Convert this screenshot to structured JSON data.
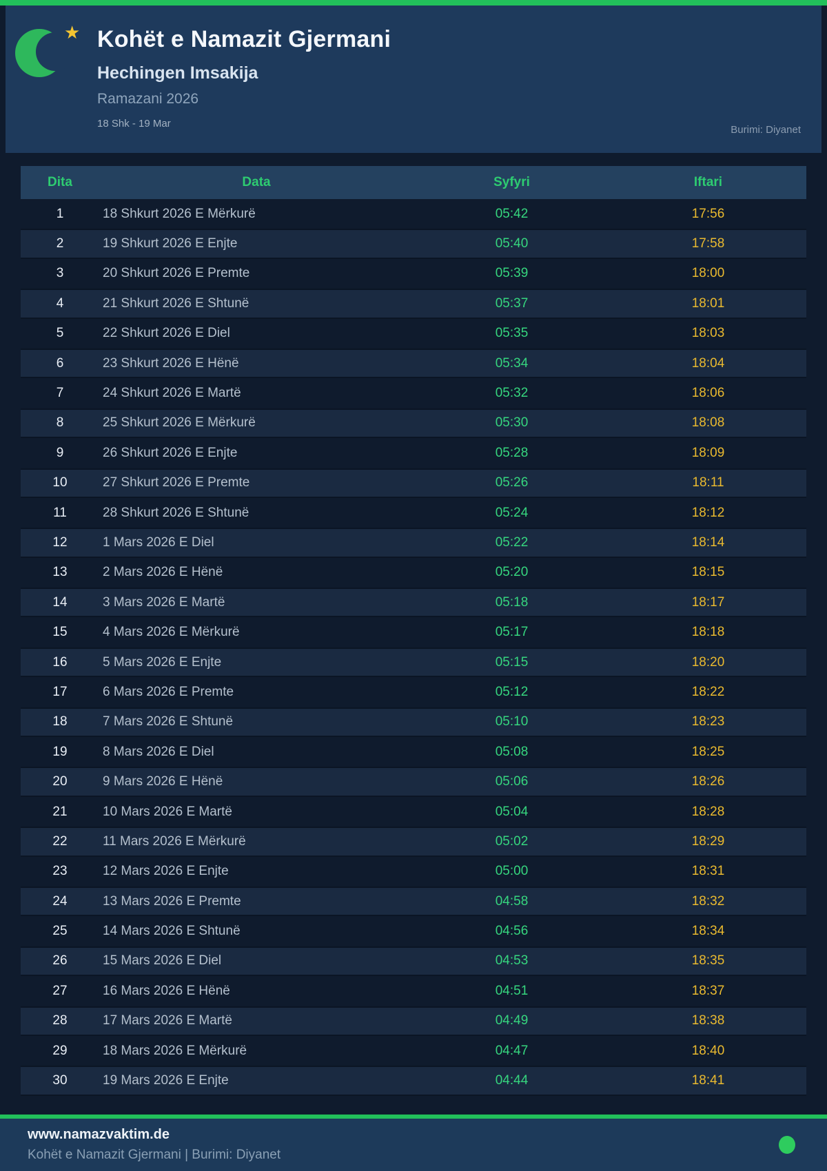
{
  "header": {
    "title": "Kohët e Namazit Gjermani",
    "subtitle": "Hechingen Imsakija",
    "season": "Ramazani 2026",
    "date_range": "18 Shk - 19 Mar",
    "source": "Burimi: Diyanet"
  },
  "table": {
    "columns": [
      "Dita",
      "Data",
      "Syfyri",
      "Iftari"
    ],
    "rows": [
      {
        "dita": "1",
        "data": "18 Shkurt 2026 E Mërkurë",
        "syfyri": "05:42",
        "iftari": "17:56"
      },
      {
        "dita": "2",
        "data": "19 Shkurt 2026 E Enjte",
        "syfyri": "05:40",
        "iftari": "17:58"
      },
      {
        "dita": "3",
        "data": "20 Shkurt 2026 E Premte",
        "syfyri": "05:39",
        "iftari": "18:00"
      },
      {
        "dita": "4",
        "data": "21 Shkurt 2026 E Shtunë",
        "syfyri": "05:37",
        "iftari": "18:01"
      },
      {
        "dita": "5",
        "data": "22 Shkurt 2026 E Diel",
        "syfyri": "05:35",
        "iftari": "18:03"
      },
      {
        "dita": "6",
        "data": "23 Shkurt 2026 E Hënë",
        "syfyri": "05:34",
        "iftari": "18:04"
      },
      {
        "dita": "7",
        "data": "24 Shkurt 2026 E Martë",
        "syfyri": "05:32",
        "iftari": "18:06"
      },
      {
        "dita": "8",
        "data": "25 Shkurt 2026 E Mërkurë",
        "syfyri": "05:30",
        "iftari": "18:08"
      },
      {
        "dita": "9",
        "data": "26 Shkurt 2026 E Enjte",
        "syfyri": "05:28",
        "iftari": "18:09"
      },
      {
        "dita": "10",
        "data": "27 Shkurt 2026 E Premte",
        "syfyri": "05:26",
        "iftari": "18:11"
      },
      {
        "dita": "11",
        "data": "28 Shkurt 2026 E Shtunë",
        "syfyri": "05:24",
        "iftari": "18:12"
      },
      {
        "dita": "12",
        "data": "1 Mars 2026 E Diel",
        "syfyri": "05:22",
        "iftari": "18:14"
      },
      {
        "dita": "13",
        "data": "2 Mars 2026 E Hënë",
        "syfyri": "05:20",
        "iftari": "18:15"
      },
      {
        "dita": "14",
        "data": "3 Mars 2026 E Martë",
        "syfyri": "05:18",
        "iftari": "18:17"
      },
      {
        "dita": "15",
        "data": "4 Mars 2026 E Mërkurë",
        "syfyri": "05:17",
        "iftari": "18:18"
      },
      {
        "dita": "16",
        "data": "5 Mars 2026 E Enjte",
        "syfyri": "05:15",
        "iftari": "18:20"
      },
      {
        "dita": "17",
        "data": "6 Mars 2026 E Premte",
        "syfyri": "05:12",
        "iftari": "18:22"
      },
      {
        "dita": "18",
        "data": "7 Mars 2026 E Shtunë",
        "syfyri": "05:10",
        "iftari": "18:23"
      },
      {
        "dita": "19",
        "data": "8 Mars 2026 E Diel",
        "syfyri": "05:08",
        "iftari": "18:25"
      },
      {
        "dita": "20",
        "data": "9 Mars 2026 E Hënë",
        "syfyri": "05:06",
        "iftari": "18:26"
      },
      {
        "dita": "21",
        "data": "10 Mars 2026 E Martë",
        "syfyri": "05:04",
        "iftari": "18:28"
      },
      {
        "dita": "22",
        "data": "11 Mars 2026 E Mërkurë",
        "syfyri": "05:02",
        "iftari": "18:29"
      },
      {
        "dita": "23",
        "data": "12 Mars 2026 E Enjte",
        "syfyri": "05:00",
        "iftari": "18:31"
      },
      {
        "dita": "24",
        "data": "13 Mars 2026 E Premte",
        "syfyri": "04:58",
        "iftari": "18:32"
      },
      {
        "dita": "25",
        "data": "14 Mars 2026 E Shtunë",
        "syfyri": "04:56",
        "iftari": "18:34"
      },
      {
        "dita": "26",
        "data": "15 Mars 2026 E Diel",
        "syfyri": "04:53",
        "iftari": "18:35"
      },
      {
        "dita": "27",
        "data": "16 Mars 2026 E Hënë",
        "syfyri": "04:51",
        "iftari": "18:37"
      },
      {
        "dita": "28",
        "data": "17 Mars 2026 E Martë",
        "syfyri": "04:49",
        "iftari": "18:38"
      },
      {
        "dita": "29",
        "data": "18 Mars 2026 E Mërkurë",
        "syfyri": "04:47",
        "iftari": "18:40"
      },
      {
        "dita": "30",
        "data": "19 Mars 2026 E Enjte",
        "syfyri": "04:44",
        "iftari": "18:41"
      }
    ]
  },
  "footer": {
    "website": "www.namazvaktim.de",
    "tagline": "Kohët e Namazit Gjermani | Burimi: Diyanet"
  },
  "colors": {
    "accent_green": "#22c05b",
    "page_bg": "#0f1b2d",
    "header_bg": "#1e3a5c",
    "band_bg": "#24415f",
    "band_text": "#2ecc71",
    "stripe_bg": "#1a2a41",
    "syfyri_color": "#36d67e",
    "iftari_color": "#eaba2f",
    "moon_green": "#2eb85c",
    "star_gold": "#f5c531",
    "dot_green": "#2ecc5e",
    "footer_bg": "#1d3a5a"
  },
  "icons": {
    "moon": "crescent-moon-icon",
    "star": "star-icon",
    "dot": "status-dot-icon"
  }
}
